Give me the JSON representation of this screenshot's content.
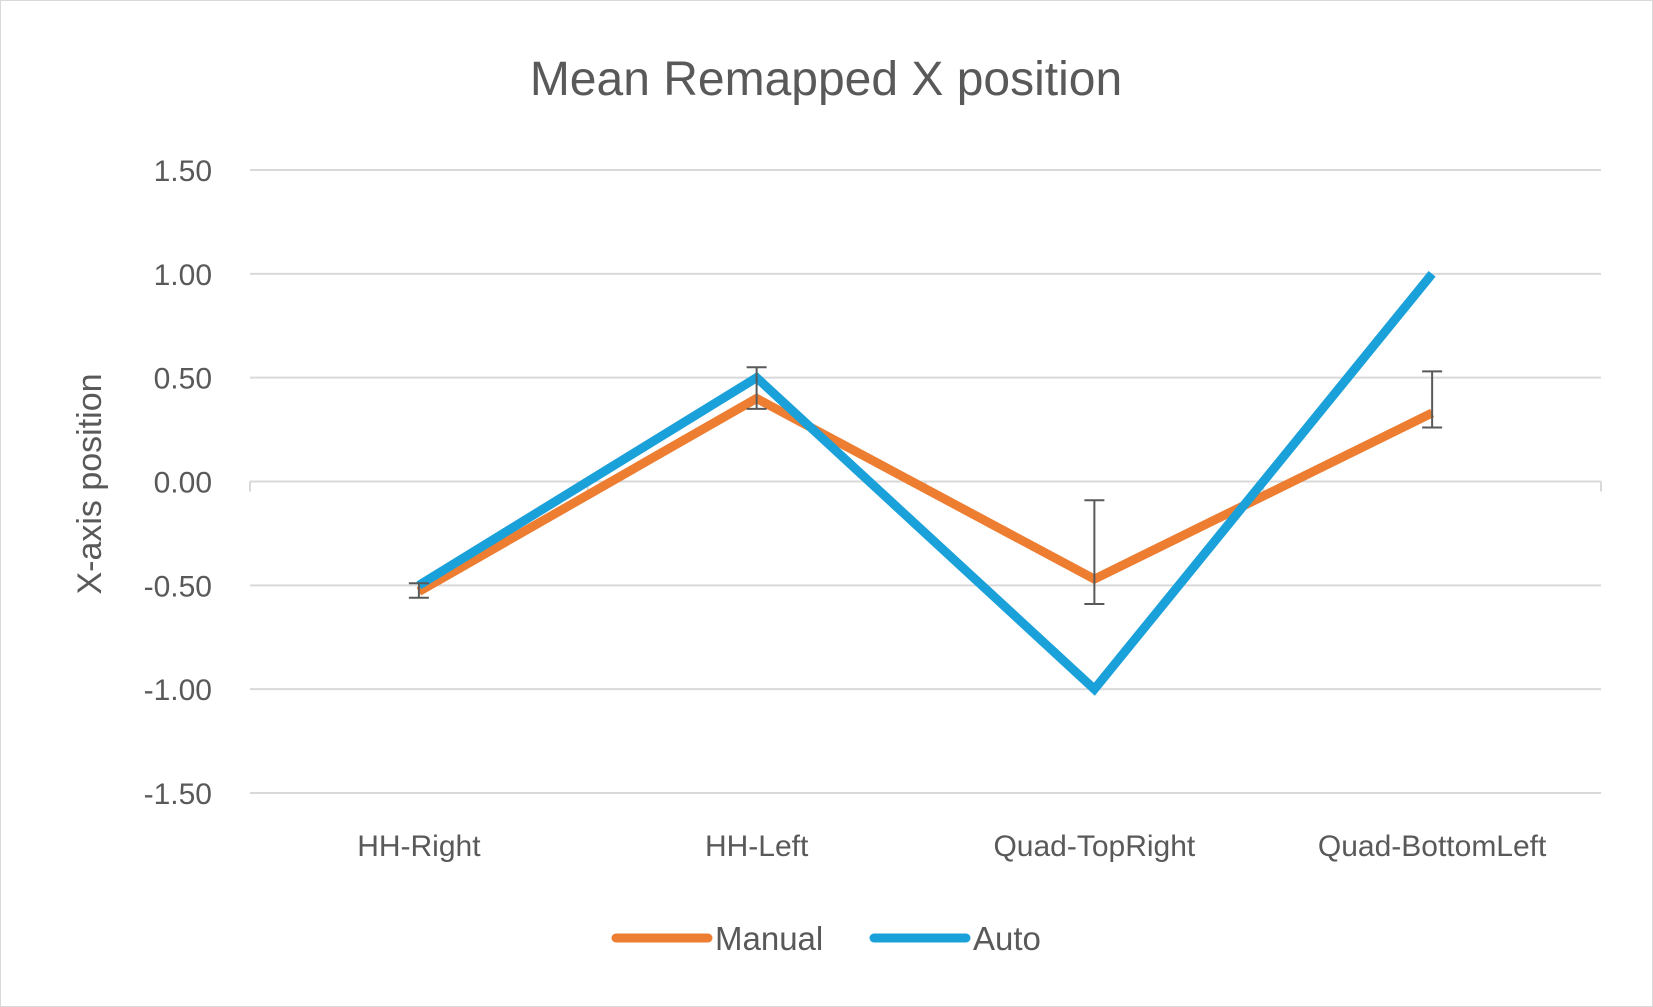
{
  "chart_data": {
    "type": "line",
    "title": "Mean Remapped X position",
    "xlabel": "",
    "ylabel": "X-axis  position",
    "categories": [
      "HH-Right",
      "HH-Left",
      "Quad-TopRight",
      "Quad-BottomLeft"
    ],
    "ylim": [
      -1.5,
      1.5
    ],
    "yticks": [
      "1.50",
      "1.00",
      "0.50",
      "0.00",
      "-0.50",
      "-1.00",
      "-1.50"
    ],
    "ytick_values": [
      1.5,
      1.0,
      0.5,
      0.0,
      -0.5,
      -1.0,
      -1.5
    ],
    "grid": true,
    "legend_position": "bottom",
    "series": [
      {
        "name": "Manual",
        "color": "#ED7D31",
        "values": [
          -0.53,
          0.4,
          -0.47,
          0.33
        ],
        "error_low": [
          -0.56,
          0.35,
          -0.59,
          0.26
        ],
        "error_high": [
          -0.49,
          0.55,
          -0.09,
          0.53
        ]
      },
      {
        "name": "Auto",
        "color": "#1AA1D9",
        "values": [
          -0.5,
          0.5,
          -1.0,
          1.0
        ]
      }
    ]
  }
}
